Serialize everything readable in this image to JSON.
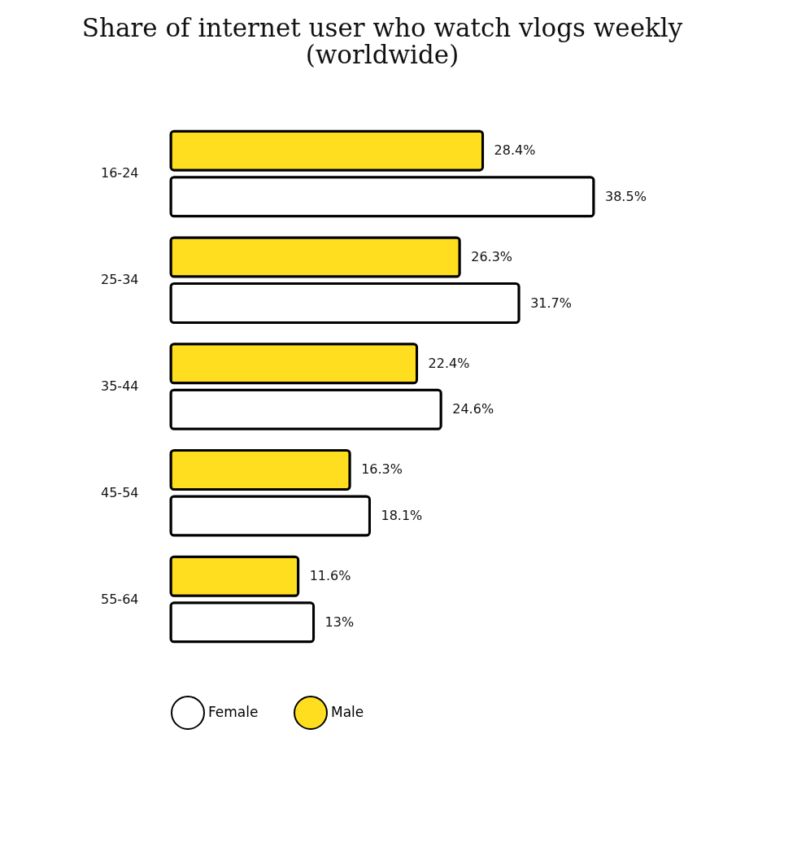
{
  "chart_data": {
    "type": "bar",
    "orientation": "horizontal",
    "title": "Share of internet user who watch vlogs weekly (worldwide)",
    "categories": [
      "16-24",
      "25-34",
      "35-44",
      "45-54",
      "55-64"
    ],
    "series": [
      {
        "name": "Female",
        "color": "#ffffff",
        "values": [
          38.5,
          31.7,
          24.6,
          18.1,
          13
        ],
        "value_labels": [
          "38.5%",
          "31.7%",
          "24.6%",
          "18.1%",
          "13%"
        ]
      },
      {
        "name": "Male",
        "color": "#ffdd1f",
        "values": [
          28.4,
          26.3,
          22.4,
          16.3,
          11.6
        ],
        "value_labels": [
          "28.4%",
          "26.3%",
          "22.4%",
          "16.3%",
          "11.6%"
        ]
      }
    ],
    "legend": "bottom",
    "grid": false
  }
}
